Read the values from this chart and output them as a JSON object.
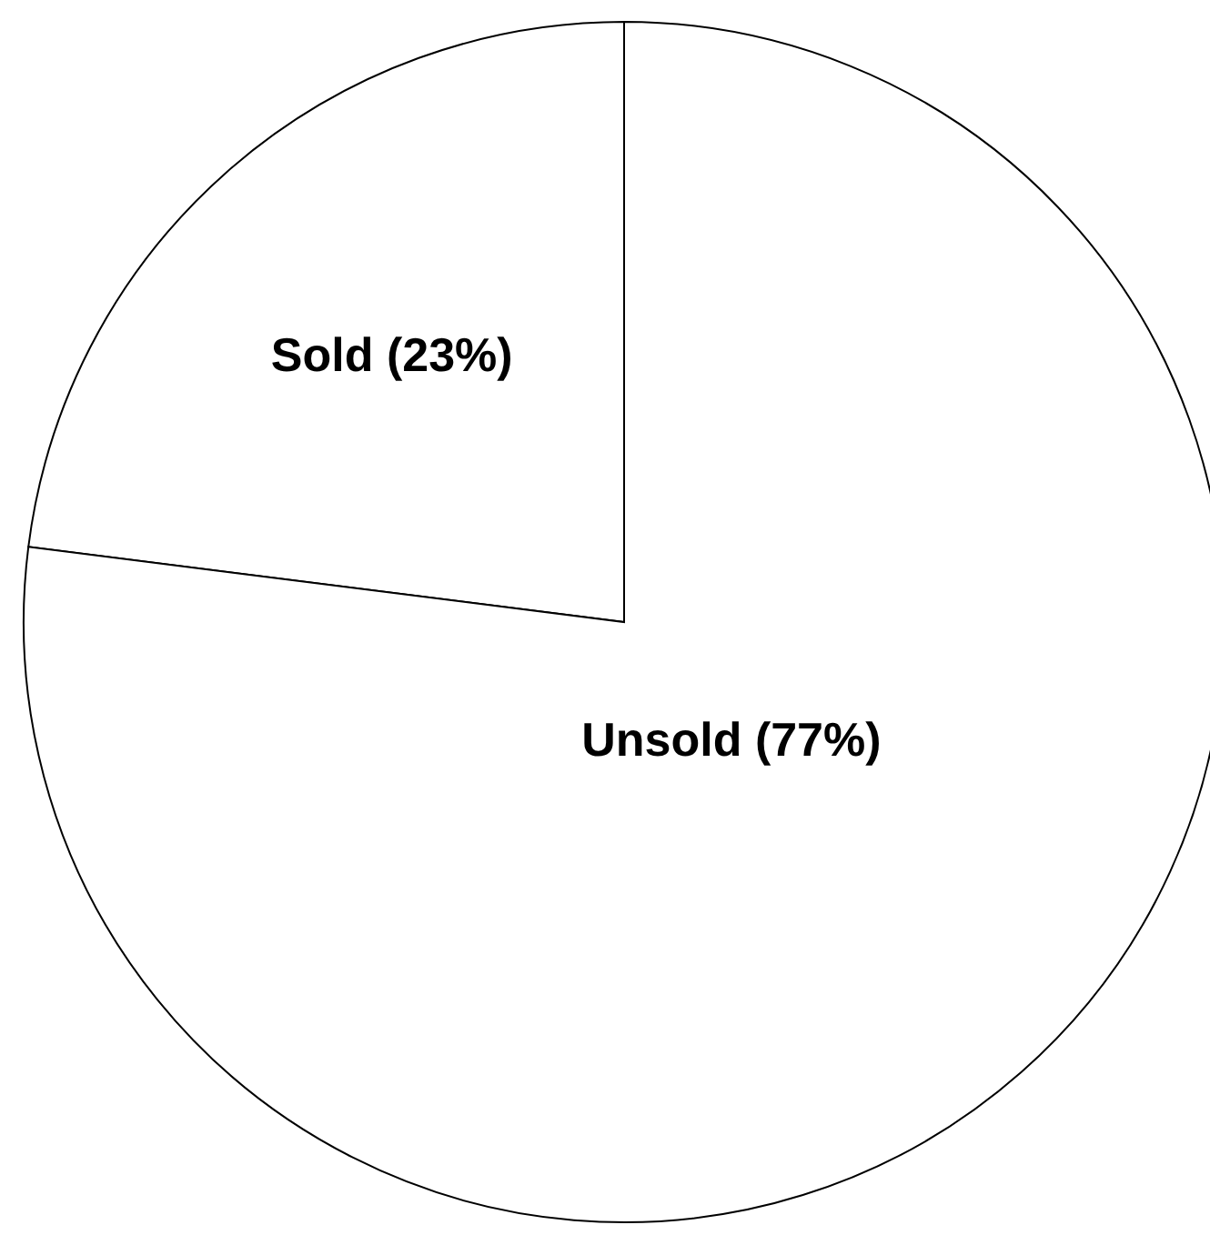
{
  "chart_data": {
    "type": "pie",
    "categories": [
      "Sold",
      "Unsold"
    ],
    "values": [
      23,
      77
    ],
    "value_labels": [
      "(23%)",
      "(77%)"
    ],
    "colors": [
      "#ffffff",
      "#ffffff"
    ]
  }
}
